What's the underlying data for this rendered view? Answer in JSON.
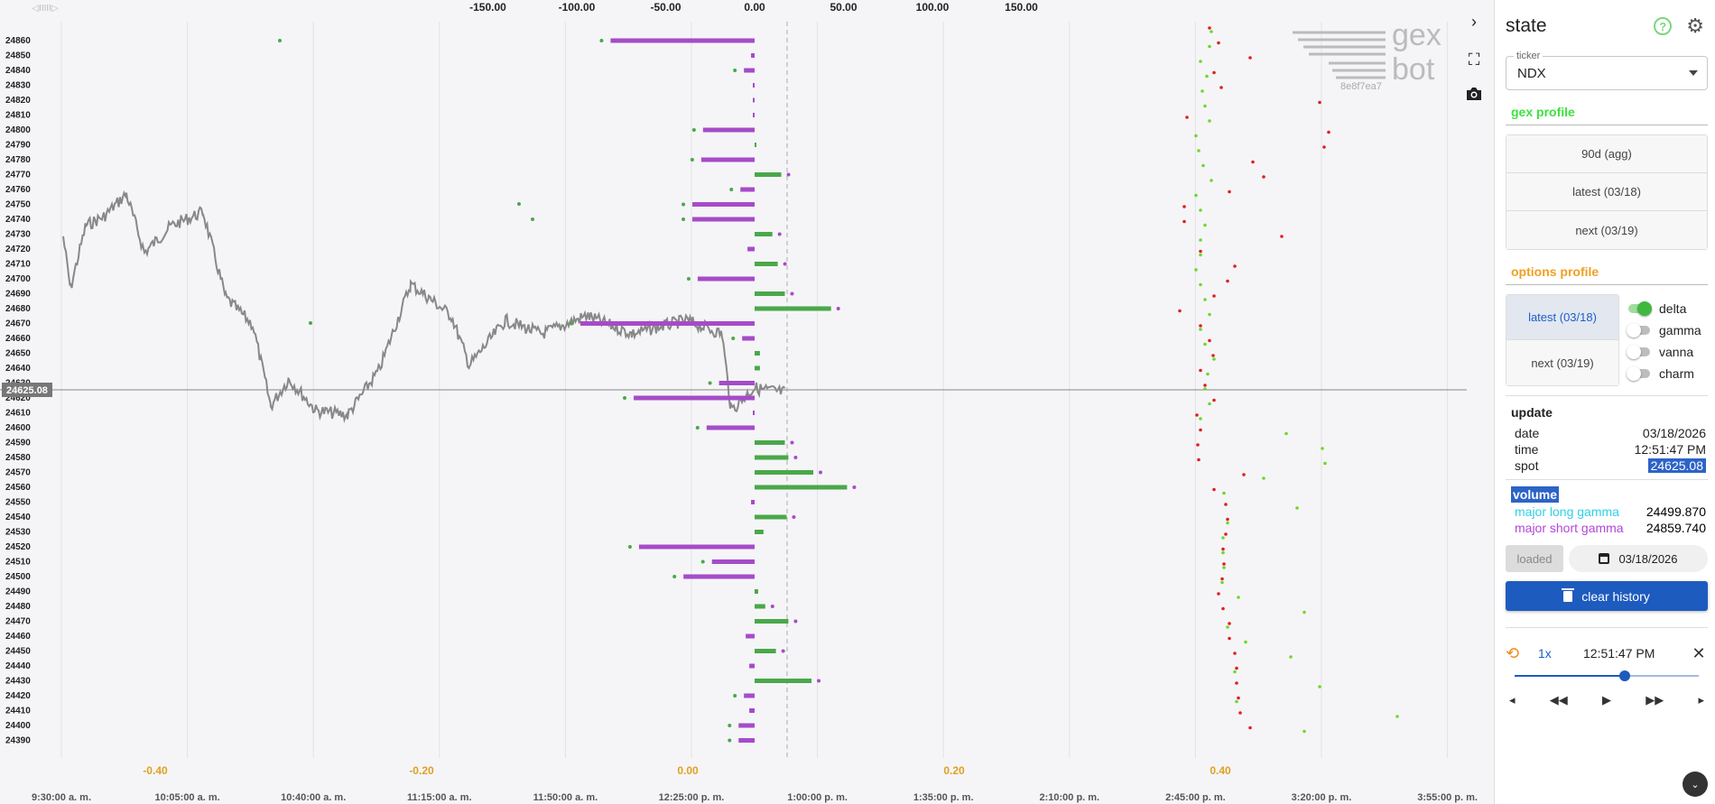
{
  "app": {
    "logo_text_top": "gex",
    "logo_text_bottom": "bot",
    "logo_id": "8e8f7ea7"
  },
  "chart": {
    "spot_label": "24625.08",
    "top_axis_left_label": "◁IIIII▷",
    "top_axis": [
      "-150.00",
      "-100.00",
      "-50.00",
      "0.00",
      "50.00",
      "100.00",
      "150.00"
    ],
    "bottom_axis_values": [
      "-0.40",
      "-0.20",
      "0.00",
      "0.20",
      "0.40"
    ],
    "time_axis": [
      "9:30:00 a. m.",
      "10:05:00 a. m.",
      "10:40:00 a. m.",
      "11:15:00 a. m.",
      "11:50:00 a. m.",
      "12:25:00 p. m.",
      "1:00:00 p. m.",
      "1:35:00 p. m.",
      "2:10:00 p. m.",
      "2:45:00 p. m.",
      "3:20:00 p. m.",
      "3:55:00 p. m."
    ],
    "strikes": [
      "24860",
      "24850",
      "24840",
      "24830",
      "24820",
      "24810",
      "24800",
      "24790",
      "24780",
      "24770",
      "24760",
      "24750",
      "24740",
      "24730",
      "24720",
      "24710",
      "24700",
      "24690",
      "24680",
      "24670",
      "24660",
      "24650",
      "24640",
      "24630",
      "24620",
      "24610",
      "24600",
      "24590",
      "24580",
      "24570",
      "24560",
      "24550",
      "24540",
      "24530",
      "24520",
      "24510",
      "24500",
      "24490",
      "24480",
      "24470",
      "24460",
      "24450",
      "24440",
      "24430",
      "24420",
      "24410",
      "24400",
      "24390"
    ]
  },
  "chart_data": {
    "type": "bar",
    "categories": [
      "24860",
      "24850",
      "24840",
      "24830",
      "24820",
      "24810",
      "24800",
      "24790",
      "24780",
      "24770",
      "24760",
      "24750",
      "24740",
      "24730",
      "24720",
      "24710",
      "24700",
      "24690",
      "24680",
      "24670",
      "24660",
      "24650",
      "24640",
      "24630",
      "24620",
      "24610",
      "24600",
      "24590",
      "24580",
      "24570",
      "24560",
      "24550",
      "24540",
      "24530",
      "24520",
      "24510",
      "24500",
      "24490",
      "24480",
      "24470",
      "24460",
      "24450",
      "24440",
      "24430",
      "24420",
      "24410",
      "24400",
      "24390"
    ],
    "values": [
      -81,
      -2,
      -6,
      -1,
      -1,
      -1,
      -29,
      0,
      -30,
      15,
      -8,
      -35,
      -35,
      10,
      -4,
      13,
      -32,
      17,
      43,
      -98,
      -7,
      3,
      3,
      -20,
      -68,
      -1,
      -27,
      17,
      19,
      33,
      52,
      -2,
      18,
      5,
      -65,
      -24,
      -40,
      2,
      6,
      19,
      -5,
      12,
      -3,
      32,
      -6,
      -3,
      -9,
      -9
    ],
    "spot": 24625.08,
    "xlim": [
      -150,
      150
    ]
  },
  "colors": {
    "negative": "#a64bc9",
    "positive": "#4aa84a",
    "price_line": "#888888",
    "red_dot": "#e02020",
    "green_dot": "#6fd82c"
  },
  "sidebar": {
    "title": "state",
    "ticker_label": "ticker",
    "ticker_value": "NDX",
    "gex_profile_title": "gex profile",
    "gex_profile_color": "#3fe13f",
    "gex_buttons": [
      "90d (agg)",
      "latest (03/18)",
      "next (03/19)"
    ],
    "options_profile_title": "options profile",
    "options_profile_color": "#f0a020",
    "options_buttons": [
      "latest (03/18)",
      "next (03/19)"
    ],
    "toggles": [
      {
        "label": "delta",
        "on": true
      },
      {
        "label": "gamma",
        "on": false
      },
      {
        "label": "vanna",
        "on": false
      },
      {
        "label": "charm",
        "on": false
      }
    ],
    "update_title": "update",
    "update": {
      "date_label": "date",
      "date_value": "03/18/2026",
      "time_label": "time",
      "time_value": "12:51:47 PM",
      "spot_label": "spot",
      "spot_value": "24625.08"
    },
    "volume_title": "volume",
    "volume": {
      "long_label": "major long gamma",
      "long_value": "24499.870",
      "long_color": "#2fd0e6",
      "short_label": "major short gamma",
      "short_value": "24859.740",
      "short_color": "#b146d6"
    },
    "loaded_label": "loaded",
    "date_picker_value": "03/18/2026",
    "clear_history_label": "clear history",
    "player": {
      "speed": "1x",
      "time": "12:51:47 PM",
      "progress": 0.6
    }
  }
}
